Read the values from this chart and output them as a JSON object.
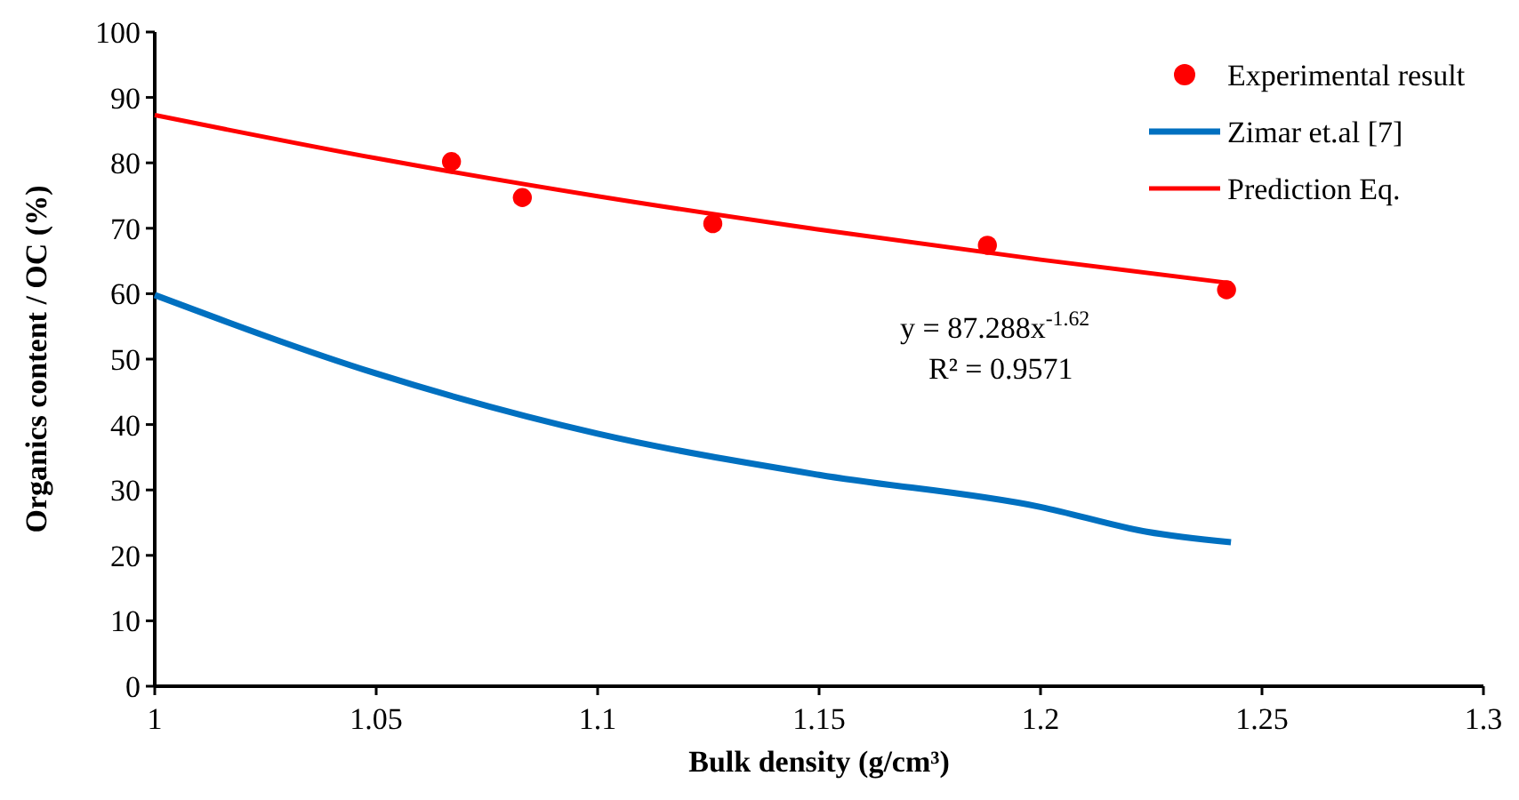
{
  "chart_data": {
    "type": "line",
    "xlabel": "Bulk density (g/cm³)",
    "ylabel": "Organics content / OC (%)",
    "xlim": [
      1,
      1.3
    ],
    "xticks": [
      {
        "value": 1,
        "label": "1"
      },
      1.05,
      1.1,
      1.15,
      1.2,
      1.25,
      1.3
    ],
    "ylim": [
      0,
      100
    ],
    "yticks": [
      0,
      10,
      20,
      30,
      40,
      50,
      60,
      70,
      80,
      90,
      100
    ],
    "grid": false,
    "legend": "top right",
    "series": [
      {
        "name": "Experimental result",
        "type": "scatter",
        "marker": "circle",
        "color": "#ff0000",
        "x": [
          1.067,
          1.083,
          1.126,
          1.188,
          1.242
        ],
        "values": [
          80.2,
          74.7,
          70.7,
          67.4,
          60.6
        ]
      },
      {
        "name": "Zimar et.al [7]",
        "marker": "none",
        "color": "#0070c0",
        "x": [
          1,
          1.05,
          1.1,
          1.15,
          1.2,
          1.224,
          1.243
        ],
        "values": [
          59.8,
          47.8,
          38.6,
          32.3,
          27.4,
          23.6,
          22
        ]
      },
      {
        "name": "Prediction Eq.",
        "marker": "none",
        "color": "#ff0000",
        "x": [
          1,
          1.05,
          1.1,
          1.15,
          1.2,
          1.243
        ],
        "values": [
          87.3,
          80.7,
          74.9,
          69.8,
          65.2,
          61.6
        ]
      }
    ],
    "annotations": [
      "y = 87.288x$^{-1.62}$",
      "R² = 0.9571"
    ]
  }
}
